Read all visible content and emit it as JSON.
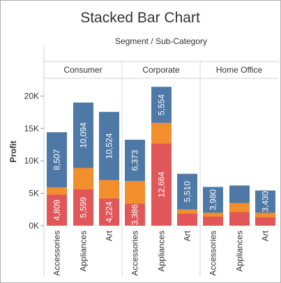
{
  "chart_data": {
    "type": "bar",
    "stacked": true,
    "title": "Stacked Bar Chart",
    "column_header": "Segment / Sub-Category",
    "ylabel": "Profit",
    "ylim": [
      0,
      22500
    ],
    "yticks": [
      {
        "value": 0,
        "label": "0K"
      },
      {
        "value": 5000,
        "label": "5K"
      },
      {
        "value": 10000,
        "label": "10K"
      },
      {
        "value": 15000,
        "label": "15K"
      },
      {
        "value": 20000,
        "label": "20K"
      }
    ],
    "groups": [
      "Consumer",
      "Corporate",
      "Home Office"
    ],
    "categories": [
      "Accessories",
      "Appliances",
      "Art"
    ],
    "colors": [
      "#e15759",
      "#f28e2b",
      "#4e79a7"
    ],
    "series_values": [
      {
        "layer": "bottom",
        "values": [
          [
            4809,
            5599,
            4224
          ],
          [
            3386,
            12664,
            1900
          ],
          [
            1400,
            2100,
            1300
          ]
        ],
        "labels": [
          [
            "4,809",
            "5,599",
            "4,224"
          ],
          [
            "3,386",
            "12,664",
            ""
          ],
          [
            "",
            "",
            ""
          ]
        ]
      },
      {
        "layer": "middle",
        "values": [
          [
            1100,
            3300,
            2800
          ],
          [
            3500,
            3200,
            600
          ],
          [
            600,
            1400,
            700
          ]
        ],
        "labels": [
          [
            "",
            "",
            ""
          ],
          [
            "",
            "",
            ""
          ],
          [
            "",
            "",
            ""
          ]
        ]
      },
      {
        "layer": "top",
        "values": [
          [
            8507,
            10094,
            10524
          ],
          [
            6373,
            5554,
            5510
          ],
          [
            3980,
            2700,
            3430
          ]
        ],
        "labels": [
          [
            "8,507",
            "10,094",
            "10,524"
          ],
          [
            "6,373",
            "5,554",
            "5,510"
          ],
          [
            "3,980",
            "",
            "3,430"
          ]
        ]
      }
    ]
  }
}
